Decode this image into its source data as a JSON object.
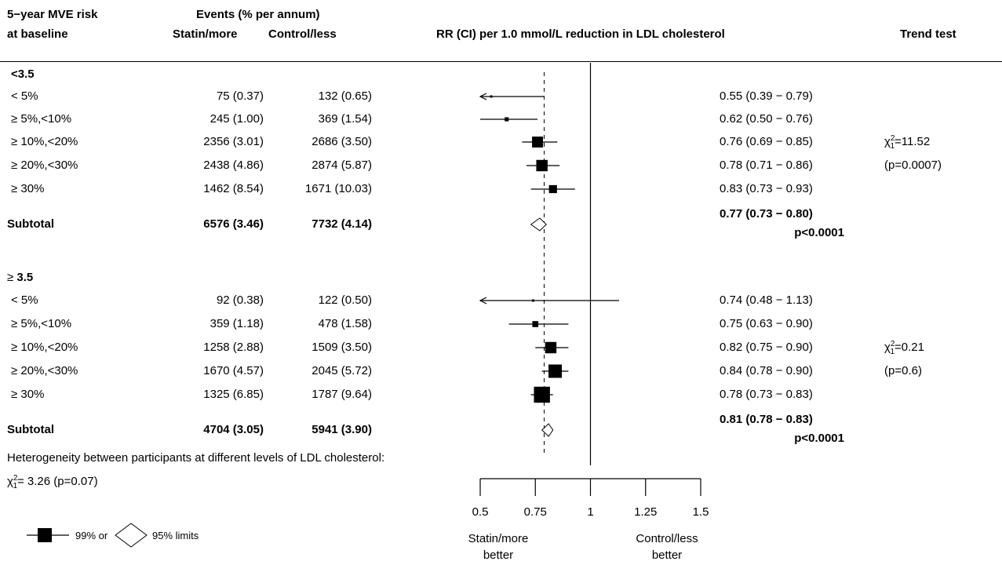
{
  "header": {
    "risk_line1": "5−year MVE risk",
    "risk_line2": "at baseline",
    "events_title": "Events (% per annum)",
    "col_statin": "Statin/more",
    "col_control": "Control/less",
    "col_rr": "RR (CI) per 1.0 mmol/L reduction in LDL cholesterol",
    "col_trend": "Trend test"
  },
  "groups": [
    {
      "label": "<3.5",
      "rows": [
        {
          "label": "< 5%",
          "statin": "75 (0.37)",
          "control": "132 (0.65)",
          "rr": "0.55 (0.39 − 0.79)",
          "est": 0.55,
          "lo": 0.39,
          "hi": 0.79,
          "weight": 0.15
        },
        {
          "label": "≥ 5%,<10%",
          "statin": "245 (1.00)",
          "control": "369 (1.54)",
          "rr": "0.62 (0.50 − 0.76)",
          "est": 0.62,
          "lo": 0.5,
          "hi": 0.76,
          "weight": 0.3
        },
        {
          "label": "≥ 10%,<20%",
          "statin": "2356 (3.01)",
          "control": "2686 (3.50)",
          "rr": "0.76 (0.69 − 0.85)",
          "est": 0.76,
          "lo": 0.69,
          "hi": 0.85,
          "weight": 0.82
        },
        {
          "label": "≥ 20%,<30%",
          "statin": "2438 (4.86)",
          "control": "2874 (5.87)",
          "rr": "0.78 (0.71 − 0.86)",
          "est": 0.78,
          "lo": 0.71,
          "hi": 0.86,
          "weight": 0.85
        },
        {
          "label": "≥ 30%",
          "statin": "1462 (8.54)",
          "control": "1671 (10.03)",
          "rr": "0.83 (0.73 − 0.93)",
          "est": 0.83,
          "lo": 0.73,
          "hi": 0.93,
          "weight": 0.6
        }
      ],
      "subtotal": {
        "label": "Subtotal",
        "statin": "6576 (3.46)",
        "control": "7732 (4.14)",
        "rr": "0.77 (0.73 − 0.80)",
        "p": "p<0.0001",
        "est": 0.77,
        "lo": 0.73,
        "hi": 0.8
      },
      "trend": {
        "chi": "=11.52",
        "p": "(p=0.0007)"
      }
    },
    {
      "label_prefix": "≥",
      "label": "3.5",
      "rows": [
        {
          "label": "< 5%",
          "statin": "92 (0.38)",
          "control": "122 (0.50)",
          "rr": "0.74 (0.48 − 1.13)",
          "est": 0.74,
          "lo": 0.48,
          "hi": 1.13,
          "weight": 0.15
        },
        {
          "label": "≥ 5%,<10%",
          "statin": "359 (1.18)",
          "control": "478 (1.58)",
          "rr": "0.75 (0.63 − 0.90)",
          "est": 0.75,
          "lo": 0.63,
          "hi": 0.9,
          "weight": 0.45
        },
        {
          "label": "≥ 10%,<20%",
          "statin": "1258 (2.88)",
          "control": "1509 (3.50)",
          "rr": "0.82 (0.75 − 0.90)",
          "est": 0.82,
          "lo": 0.75,
          "hi": 0.9,
          "weight": 0.85
        },
        {
          "label": "≥ 20%,<30%",
          "statin": "1670 (4.57)",
          "control": "2045 (5.72)",
          "rr": "0.84 (0.78 − 0.90)",
          "est": 0.84,
          "lo": 0.78,
          "hi": 0.9,
          "weight": 1.0
        },
        {
          "label": "≥ 30%",
          "statin": "1325 (6.85)",
          "control": "1787 (9.64)",
          "rr": "0.78 (0.73 − 0.83)",
          "est": 0.78,
          "lo": 0.73,
          "hi": 0.83,
          "weight": 1.2
        }
      ],
      "subtotal": {
        "label": "Subtotal",
        "statin": "4704 (3.05)",
        "control": "5941 (3.90)",
        "rr": "0.81 (0.78 − 0.83)",
        "p": "p<0.0001",
        "est": 0.81,
        "lo": 0.78,
        "hi": 0.83
      },
      "trend": {
        "chi": "=0.21",
        "p": "(p=0.6)"
      }
    }
  ],
  "heterogeneity": {
    "line1": "Heterogeneity between participants at different levels of LDL cholesterol:",
    "chi": "= 3.26 (p=0.07)"
  },
  "chi_symbol": "χ",
  "chi_sup": "2",
  "chi_sub": "1",
  "legend": {
    "label99": "99% or",
    "label95": "95% limits"
  },
  "axis": {
    "ticks": [
      "0.5",
      "0.75",
      "1",
      "1.25",
      "1.5"
    ],
    "left_label_1": "Statin/more",
    "left_label_2": "better",
    "right_label_1": "Control/less",
    "right_label_2": "better"
  },
  "chart_data": {
    "type": "forest",
    "xlim": [
      0.5,
      1.5
    ],
    "xticks": [
      0.5,
      0.75,
      1,
      1.25,
      1.5
    ],
    "reference_line": 1,
    "overall_dashed_line": 0.79,
    "series": [
      {
        "group": "<3.5",
        "estimates": [
          0.55,
          0.62,
          0.76,
          0.78,
          0.83
        ],
        "lower": [
          0.39,
          0.5,
          0.69,
          0.71,
          0.73
        ],
        "upper": [
          0.79,
          0.76,
          0.85,
          0.86,
          0.93
        ],
        "subtotal": [
          0.77,
          0.73,
          0.8
        ]
      },
      {
        "group": "≥3.5",
        "estimates": [
          0.74,
          0.75,
          0.82,
          0.84,
          0.78
        ],
        "lower": [
          0.48,
          0.63,
          0.75,
          0.78,
          0.73
        ],
        "upper": [
          1.13,
          0.9,
          0.9,
          0.9,
          0.83
        ],
        "subtotal": [
          0.81,
          0.78,
          0.83
        ]
      }
    ]
  }
}
